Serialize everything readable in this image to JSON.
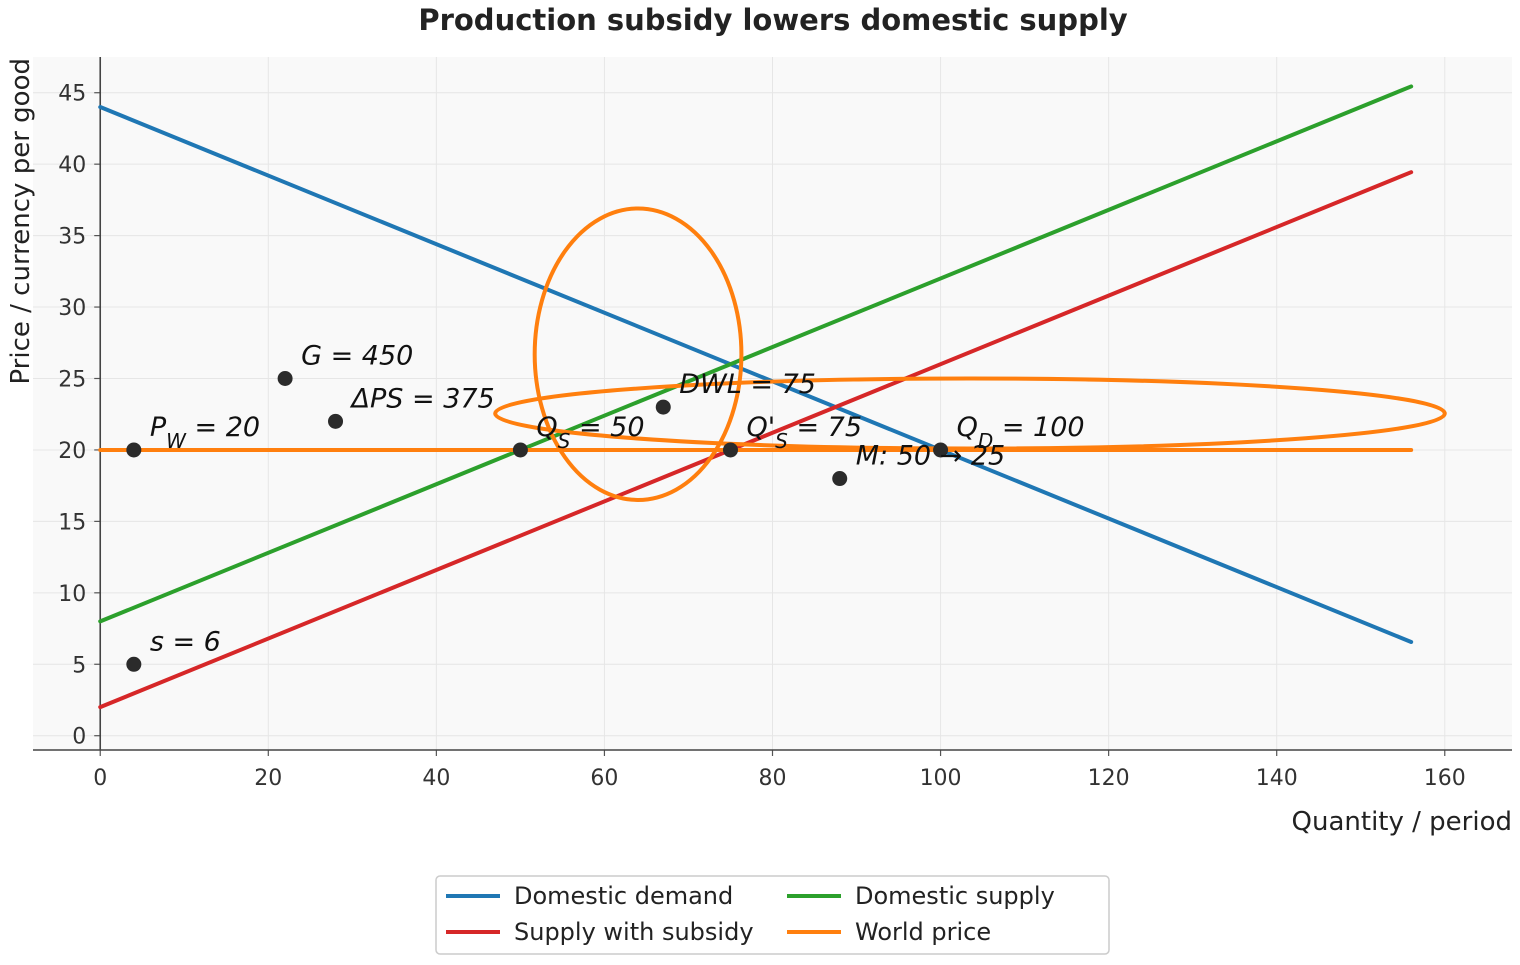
{
  "chart_data": {
    "type": "line",
    "title": "Production subsidy lowers domestic supply",
    "xlabel": "Quantity / period",
    "ylabel": "Price / currency per good",
    "xlim": [
      -8,
      168
    ],
    "ylim": [
      -1,
      47.5
    ],
    "xticks": [
      0,
      20,
      40,
      60,
      80,
      100,
      120,
      140,
      160
    ],
    "yticks": [
      0,
      5,
      10,
      15,
      20,
      25,
      30,
      35,
      40,
      45
    ],
    "grid": true,
    "legend_position": "bottom-center",
    "series": [
      {
        "name": "Domestic demand",
        "color": "#1f77b4",
        "x": [
          0,
          156
        ],
        "y": [
          44,
          6.56
        ]
      },
      {
        "name": "Domestic supply",
        "color": "#2ca02c",
        "x": [
          0,
          156
        ],
        "y": [
          8,
          45.44
        ]
      },
      {
        "name": "Supply with subsidy",
        "color": "#d62728",
        "x": [
          0,
          156
        ],
        "y": [
          2,
          39.44
        ]
      },
      {
        "name": "World price",
        "color": "#ff7f0e",
        "x": [
          0,
          156
        ],
        "y": [
          20,
          20
        ]
      }
    ],
    "ellipses": [
      {
        "color": "#ff7f0e",
        "cx": 64,
        "cy": 26.7,
        "rx": 12.3,
        "ry": 10.2
      },
      {
        "color": "#ff7f0e",
        "cx": 103.5,
        "cy": 22.55,
        "rx": 56.5,
        "ry": 2.45
      }
    ],
    "points": [
      {
        "x": 4,
        "y": 20,
        "label": "P_W = 20"
      },
      {
        "x": 22,
        "y": 25,
        "label": "G = 450"
      },
      {
        "x": 28,
        "y": 22,
        "label": "ΔPS = 375"
      },
      {
        "x": 50,
        "y": 20,
        "label": "Q_S = 50"
      },
      {
        "x": 67,
        "y": 23,
        "label": "DWL = 75"
      },
      {
        "x": 75,
        "y": 20,
        "label": "Q'_S = 75"
      },
      {
        "x": 100,
        "y": 20,
        "label": "Q_D = 100"
      },
      {
        "x": 88,
        "y": 18,
        "label": "M: 50 → 25"
      },
      {
        "x": 4,
        "y": 5,
        "label": "s = 6"
      }
    ]
  }
}
